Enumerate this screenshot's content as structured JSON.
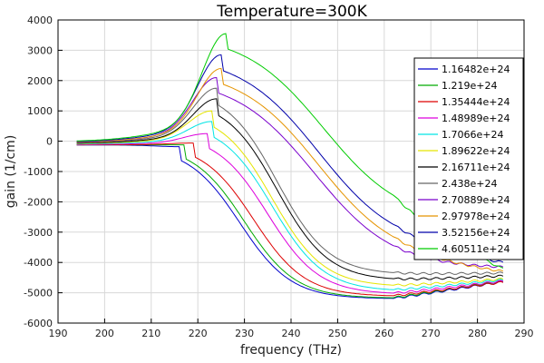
{
  "chart_data": {
    "type": "line",
    "title": "Temperature=300K",
    "xlabel": "frequency (THz)",
    "ylabel": "gain (1/cm)",
    "xlim": [
      190,
      290
    ],
    "ylim": [
      -6000,
      4000
    ],
    "xticks": [
      190,
      200,
      210,
      220,
      230,
      240,
      250,
      260,
      270,
      280,
      290
    ],
    "yticks": [
      -6000,
      -5000,
      -4000,
      -3000,
      -2000,
      -1000,
      0,
      1000,
      2000,
      3000,
      4000
    ],
    "grid": true,
    "legend_position": "top-right",
    "series": [
      {
        "name": "1.16482e+24",
        "color": "#0000cc",
        "peak_x": 216,
        "peak_y": -180,
        "end_y": -5200,
        "tail_y": -4650
      },
      {
        "name": "1.219e+24",
        "color": "#00aa00",
        "peak_x": 217,
        "peak_y": -120,
        "end_y": -5180,
        "tail_y": -4620
      },
      {
        "name": "1.35444e+24",
        "color": "#dd0000",
        "peak_x": 219,
        "peak_y": -60,
        "end_y": -5120,
        "tail_y": -4660
      },
      {
        "name": "1.48989e+24",
        "color": "#dd00dd",
        "peak_x": 222,
        "peak_y": 250,
        "end_y": -5050,
        "tail_y": -4620
      },
      {
        "name": "1.7066e+24",
        "color": "#00e5e5",
        "peak_x": 223,
        "peak_y": 650,
        "end_y": -4950,
        "tail_y": -4580
      },
      {
        "name": "1.89622e+24",
        "color": "#e5e500",
        "peak_x": 223,
        "peak_y": 1000,
        "end_y": -4800,
        "tail_y": -4550
      },
      {
        "name": "2.16711e+24",
        "color": "#000000",
        "peak_x": 224,
        "peak_y": 1400,
        "end_y": -4600,
        "tail_y": -4450
      },
      {
        "name": "2.438e+24",
        "color": "#666666",
        "peak_x": 224,
        "peak_y": 1750,
        "end_y": -4400,
        "tail_y": -4350
      },
      {
        "name": "2.70889e+24",
        "color": "#7a00cc",
        "peak_x": 224,
        "peak_y": 2100,
        "end_y": -4200,
        "tail_y": -4200
      },
      {
        "name": "2.97978e+24",
        "color": "#e59400",
        "peak_x": 225,
        "peak_y": 2400,
        "end_y": -4000,
        "tail_y": -4350
      },
      {
        "name": "3.52156e+24",
        "color": "#0000aa",
        "peak_x": 225,
        "peak_y": 2850,
        "end_y": -3600,
        "tail_y": -4050
      },
      {
        "name": "4.60511e+24",
        "color": "#00cc00",
        "peak_x": 226,
        "peak_y": 3550,
        "end_y": -2700,
        "tail_y": -4250
      }
    ]
  }
}
